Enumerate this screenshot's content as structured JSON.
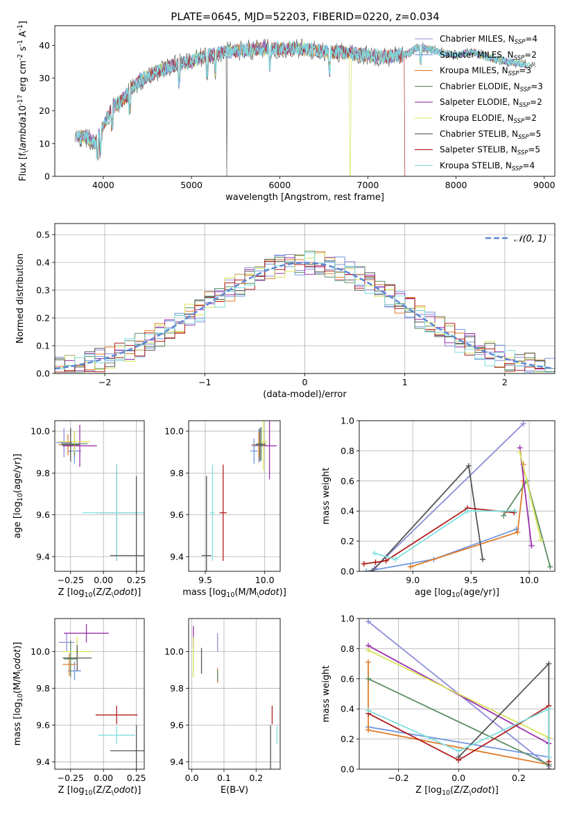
{
  "title": "PLATE=0645, MJD=52203, FIBERID=0220, z=0.034",
  "models": [
    {
      "name": "Chabrier MILES, N$_{SSP}$=4",
      "label_main": "Chabrier MILES, N",
      "label_sub": "SSP",
      "label_tail": "=4",
      "color": "#8c8cd8"
    },
    {
      "name": "Salpeter MILES, N$_{SSP}$=2",
      "label_main": "Salpeter MILES, N",
      "label_sub": "SSP",
      "label_tail": "=2",
      "color": "#6f97df"
    },
    {
      "name": "Kroupa MILES, N$_{SSP}$=3",
      "label_main": "Kroupa MILES, N",
      "label_sub": "SSP",
      "label_tail": "=3",
      "color": "#e07b28"
    },
    {
      "name": "Chabrier ELODIE, N$_{SSP}$=3",
      "label_main": "Chabrier ELODIE, N",
      "label_sub": "SSP",
      "label_tail": "=3",
      "color": "#5c8d62"
    },
    {
      "name": "Salpeter ELODIE, N$_{SSP}$=2",
      "label_main": "Salpeter ELODIE, N",
      "label_sub": "SSP",
      "label_tail": "=2",
      "color": "#9b2fae"
    },
    {
      "name": "Kroupa ELODIE, N$_{SSP}$=2",
      "label_main": "Kroupa ELODIE, N",
      "label_sub": "SSP",
      "label_tail": "=2",
      "color": "#d9e35a"
    },
    {
      "name": "Chabrier STELIB, N$_{SSP}$=5",
      "label_main": "Chabrier STELIB, N",
      "label_sub": "SSP",
      "label_tail": "=5",
      "color": "#555555"
    },
    {
      "name": "Salpeter STELIB, N$_{SSP}$=5",
      "label_main": "Salpeter STELIB, N",
      "label_sub": "SSP",
      "label_tail": "=5",
      "color": "#b01c1c"
    },
    {
      "name": "Kroupa STELIB, N$_{SSP}$=4",
      "label_main": "Kroupa STELIB, N",
      "label_sub": "SSP",
      "label_tail": "=4",
      "color": "#7fdede"
    }
  ],
  "chart_data": [
    {
      "id": "spectrum",
      "type": "line",
      "xlabel": "wavelength [Angstrom, rest frame]",
      "ylabel": "Flux [f$_\\lambda$10$^{-17}$ erg cm$^{-2}$ s$^{-1}$ A$^{-1}$]",
      "xlim": [
        3450,
        9120
      ],
      "ylim": [
        0,
        46
      ],
      "xticks": [
        4000,
        5000,
        6000,
        7000,
        8000,
        9000
      ],
      "yticks": [
        0,
        10,
        20,
        30,
        40
      ],
      "grid": false,
      "legend": "right",
      "continuum": {
        "x": [
          3700,
          3800,
          3900,
          4000,
          4100,
          4200,
          4300,
          4400,
          4600,
          4800,
          5000,
          5200,
          5400,
          5600,
          5800,
          6000,
          6200,
          6400,
          6600,
          6800,
          7000,
          7200,
          7400,
          7600,
          7800,
          8000,
          8200,
          8400,
          8600,
          8800
        ],
        "y": [
          12,
          12,
          10,
          15,
          21,
          23,
          26,
          29,
          32,
          34,
          35,
          37,
          38,
          38.5,
          39,
          39,
          39,
          38.5,
          38,
          37.5,
          37,
          36.5,
          37,
          39.5,
          38,
          37,
          38,
          36,
          35,
          34
        ]
      }
    },
    {
      "id": "residuals",
      "type": "step",
      "xlabel": "(data-model)/error",
      "ylabel": "Normed distribution",
      "xlim": [
        -2.5,
        2.5
      ],
      "ylim": [
        0,
        0.54
      ],
      "xticks": [
        -2,
        -1,
        0,
        1,
        2
      ],
      "xtick_labels": [
        "−2",
        "−1",
        "0",
        "1",
        "2"
      ],
      "yticks": [
        0,
        0.1,
        0.2,
        0.3,
        0.4,
        0.5
      ],
      "ytick_labels": [
        "0.0",
        "0.1",
        "0.2",
        "0.3",
        "0.4",
        "0.5"
      ],
      "grid": true,
      "legend": "top-right",
      "reference_label": "𝒩(0, 1)",
      "bin_width": 0.1
    },
    {
      "id": "age-Z",
      "type": "errorbar",
      "xlabel": "Z [log$_{10}$(Z/Z$_\\odot$)]",
      "ylabel": "age [log$_{10}$(age/yr)]",
      "xlim": [
        -0.37,
        0.31
      ],
      "ylim": [
        9.33,
        10.05
      ],
      "xticks": [
        -0.25,
        0,
        0.25
      ],
      "xtick_labels": [
        "−0.25",
        "0.00",
        "0.25"
      ],
      "yticks": [
        9.4,
        9.6,
        9.8,
        10.0
      ],
      "ytick_labels": [
        "9.4",
        "9.6",
        "9.8",
        "10.0"
      ],
      "points": [
        {
          "x": -0.3,
          "y": 9.945,
          "xerr": 0.06,
          "yerr": 0.07,
          "c": 0
        },
        {
          "x": -0.22,
          "y": 9.905,
          "xerr": 0.05,
          "yerr": 0.06,
          "c": 1
        },
        {
          "x": -0.27,
          "y": 9.935,
          "xerr": 0.07,
          "yerr": 0.05,
          "c": 2
        },
        {
          "x": -0.22,
          "y": 9.94,
          "xerr": 0.1,
          "yerr": 0.06,
          "c": 3
        },
        {
          "x": -0.18,
          "y": 9.93,
          "xerr": 0.13,
          "yerr": 0.1,
          "c": 4
        },
        {
          "x": -0.22,
          "y": 9.95,
          "xerr": 0.12,
          "yerr": 0.05,
          "c": 5
        },
        {
          "x": -0.25,
          "y": 9.935,
          "xerr": 0.07,
          "yerr": 0.08,
          "c": 6
        },
        {
          "x": 0.1,
          "y": 9.61,
          "xerr": 0.16,
          "yerr": 0.23,
          "c": 7
        },
        {
          "x": 0.1,
          "y": 9.61,
          "xerr": 0.26,
          "yerr": 0.23,
          "c": 8
        },
        {
          "x": 0.25,
          "y": 9.405,
          "xerr": 0.2,
          "yerr": 0.38,
          "c": 6
        }
      ]
    },
    {
      "id": "age-mass",
      "type": "errorbar",
      "xlabel": "mass [log$_{10}$(M/M$_\\odot$)]",
      "ylabel": "",
      "xlim": [
        9.36,
        10.13
      ],
      "ylim": [
        9.33,
        10.05
      ],
      "xticks": [
        9.5,
        10.0
      ],
      "xtick_labels": [
        "9.5",
        "10.0"
      ],
      "yticks": [
        9.4,
        9.6,
        9.8,
        10.0
      ],
      "ytick_labels": [
        "9.4",
        "9.6",
        "9.8",
        "10.0"
      ],
      "points": [
        {
          "x": 9.95,
          "y": 9.93,
          "xerr": 0.06,
          "yerr": 0.08,
          "c": 0
        },
        {
          "x": 9.91,
          "y": 9.905,
          "xerr": 0.03,
          "yerr": 0.06,
          "c": 1
        },
        {
          "x": 9.95,
          "y": 9.935,
          "xerr": 0.06,
          "yerr": 0.06,
          "c": 2
        },
        {
          "x": 9.97,
          "y": 9.94,
          "xerr": 0.04,
          "yerr": 0.08,
          "c": 3
        },
        {
          "x": 10.04,
          "y": 9.93,
          "xerr": 0.06,
          "yerr": 0.16,
          "c": 4
        },
        {
          "x": 9.99,
          "y": 9.95,
          "xerr": 0.03,
          "yerr": 0.14,
          "c": 5
        },
        {
          "x": 9.96,
          "y": 9.935,
          "xerr": 0.04,
          "yerr": 0.08,
          "c": 6
        },
        {
          "x": 9.65,
          "y": 9.61,
          "xerr": 0.03,
          "yerr": 0.23,
          "c": 7
        },
        {
          "x": 9.56,
          "y": 9.61,
          "xerr": 0.02,
          "yerr": 0.23,
          "c": 8
        },
        {
          "x": 9.51,
          "y": 9.405,
          "xerr": 0.04,
          "yerr": 0.38,
          "c": 6
        }
      ]
    },
    {
      "id": "weight-age",
      "type": "line",
      "xlabel": "age [log$_{10}$(age/yr)]",
      "ylabel": "mass weight",
      "xlim": [
        8.54,
        10.22
      ],
      "ylim": [
        0,
        1.0
      ],
      "xticks": [
        9.0,
        9.5,
        10.0
      ],
      "xtick_labels": [
        "9.0",
        "9.5",
        "10.0"
      ],
      "yticks": [
        0,
        0.2,
        0.4,
        0.6,
        0.8,
        1.0
      ],
      "ytick_labels": [
        "0.0",
        "0.2",
        "0.4",
        "0.6",
        "0.8",
        "1.0"
      ],
      "grid": true,
      "series": [
        {
          "c": 0,
          "x": [
            9.95,
            8.67
          ],
          "y": [
            0.98,
            0.02
          ]
        },
        {
          "c": 1,
          "x": [
            8.6,
            9.18,
            9.89
          ],
          "y": [
            0.0,
            0.08,
            0.28
          ]
        },
        {
          "c": 2,
          "x": [
            8.98,
            9.9,
            9.95,
            9.95
          ],
          "y": [
            0.03,
            0.26,
            0.6,
            0.71
          ]
        },
        {
          "c": 3,
          "x": [
            9.78,
            9.98,
            10.18
          ],
          "y": [
            0.37,
            0.6,
            0.03
          ]
        },
        {
          "c": 4,
          "x": [
            9.92,
            10.02
          ],
          "y": [
            0.82,
            0.17
          ]
        },
        {
          "c": 5,
          "x": [
            9.92,
            10.1
          ],
          "y": [
            0.79,
            0.21
          ]
        },
        {
          "c": 6,
          "x": [
            8.65,
            9.48,
            9.6
          ],
          "y": [
            0.0,
            0.7,
            0.08
          ]
        },
        {
          "c": 7,
          "x": [
            8.58,
            8.68,
            8.77,
            9.47,
            9.87
          ],
          "y": [
            0.05,
            0.06,
            0.07,
            0.42,
            0.39
          ]
        },
        {
          "c": 8,
          "x": [
            8.67,
            8.85,
            9.47,
            9.88
          ],
          "y": [
            0.12,
            0.08,
            0.4,
            0.4
          ]
        }
      ]
    },
    {
      "id": "mass-Z",
      "type": "errorbar",
      "xlabel": "Z [log$_{10}$(Z/Z$_\\odot$)]",
      "ylabel": "mass [log$_{10}$(M/M$_\\odot$)]",
      "xlim": [
        -0.37,
        0.31
      ],
      "ylim": [
        9.36,
        10.18
      ],
      "xticks": [
        -0.25,
        0,
        0.25
      ],
      "xtick_labels": [
        "−0.25",
        "0.00",
        "0.25"
      ],
      "yticks": [
        9.4,
        9.6,
        9.8,
        10.0
      ],
      "ytick_labels": [
        "9.4",
        "9.6",
        "9.8",
        "10.0"
      ],
      "points": [
        {
          "x": -0.28,
          "y": 10.05,
          "xerr": 0.06,
          "yerr": 0.05,
          "c": 0
        },
        {
          "x": -0.22,
          "y": 9.895,
          "xerr": 0.05,
          "yerr": 0.05,
          "c": 1
        },
        {
          "x": -0.26,
          "y": 9.93,
          "xerr": 0.05,
          "yerr": 0.06,
          "c": 2
        },
        {
          "x": -0.25,
          "y": 9.96,
          "xerr": 0.05,
          "yerr": 0.1,
          "c": 3
        },
        {
          "x": -0.13,
          "y": 10.1,
          "xerr": 0.17,
          "yerr": 0.05,
          "c": 4
        },
        {
          "x": -0.2,
          "y": 10.0,
          "xerr": 0.12,
          "yerr": 0.08,
          "c": 5
        },
        {
          "x": -0.2,
          "y": 9.965,
          "xerr": 0.11,
          "yerr": 0.07,
          "c": 6
        },
        {
          "x": 0.1,
          "y": 9.655,
          "xerr": 0.16,
          "yerr": 0.05,
          "c": 7
        },
        {
          "x": 0.1,
          "y": 9.545,
          "xerr": 0.14,
          "yerr": 0.05,
          "c": 8
        },
        {
          "x": 0.25,
          "y": 9.46,
          "xerr": 0.2,
          "yerr": 0.14,
          "c": 6
        }
      ]
    },
    {
      "id": "mass-EBV",
      "type": "errorbar",
      "xlabel": "E(B-V)",
      "ylabel": "",
      "xlim": [
        -0.01,
        0.275
      ],
      "ylim": [
        9.36,
        10.18
      ],
      "xticks": [
        0.0,
        0.1,
        0.2
      ],
      "xtick_labels": [
        "0.0",
        "0.1",
        "0.2"
      ],
      "yticks": [
        9.4,
        9.6,
        9.8,
        10.0
      ],
      "ytick_labels": [
        "9.4",
        "9.6",
        "9.8",
        "10.0"
      ],
      "points": [
        {
          "x": 0.08,
          "y": 10.05,
          "xerr": 0,
          "yerr": 0.05,
          "c": 0
        },
        {
          "x": 0.005,
          "y": 10.08,
          "xerr": 0,
          "yerr": 0.06,
          "c": 4
        },
        {
          "x": 0.005,
          "y": 9.97,
          "xerr": 0,
          "yerr": 0.11,
          "c": 5
        },
        {
          "x": 0.03,
          "y": 9.95,
          "xerr": 0,
          "yerr": 0.07,
          "c": 6
        },
        {
          "x": 0.08,
          "y": 9.87,
          "xerr": 0,
          "yerr": 0.04,
          "c": 2
        },
        {
          "x": 0.08,
          "y": 9.87,
          "xerr": 0,
          "yerr": 0.03,
          "c": 3
        },
        {
          "x": 0.25,
          "y": 9.655,
          "xerr": 0,
          "yerr": 0.05,
          "c": 7
        },
        {
          "x": 0.265,
          "y": 9.545,
          "xerr": 0,
          "yerr": 0.05,
          "c": 8
        },
        {
          "x": 0.245,
          "y": 9.46,
          "xerr": 0,
          "yerr": 0.14,
          "c": 6
        }
      ]
    },
    {
      "id": "weight-Z",
      "type": "line",
      "xlabel": "Z [log$_{10}$(Z/Z$_\\odot$)]",
      "ylabel": "mass weight",
      "xlim": [
        -0.33,
        0.32
      ],
      "ylim": [
        0,
        1.0
      ],
      "xticks": [
        -0.2,
        0.0,
        0.2
      ],
      "xtick_labels": [
        "−0.2",
        "0.0",
        "0.2"
      ],
      "yticks": [
        0,
        0.2,
        0.4,
        0.6,
        0.8,
        1.0
      ],
      "ytick_labels": [
        "0.0",
        "0.2",
        "0.4",
        "0.6",
        "0.8",
        "1.0"
      ],
      "grid": true,
      "series": [
        {
          "c": 0,
          "x": [
            -0.3,
            0.3
          ],
          "y": [
            0.98,
            0.02
          ]
        },
        {
          "c": 1,
          "x": [
            -0.3,
            0.3
          ],
          "y": [
            0.28,
            0.08
          ]
        },
        {
          "c": 2,
          "x": [
            -0.3,
            -0.3,
            -0.3,
            0.3
          ],
          "y": [
            0.71,
            0.6,
            0.26,
            0.03
          ]
        },
        {
          "c": 3,
          "x": [
            -0.3,
            0.3
          ],
          "y": [
            0.6,
            0.03
          ]
        },
        {
          "c": 4,
          "x": [
            -0.3,
            0.3
          ],
          "y": [
            0.82,
            0.17
          ]
        },
        {
          "c": 5,
          "x": [
            -0.3,
            0.3
          ],
          "y": [
            0.79,
            0.21
          ]
        },
        {
          "c": 6,
          "x": [
            0.0,
            0.3,
            0.3
          ],
          "y": [
            0.08,
            0.7,
            0.0
          ]
        },
        {
          "c": 7,
          "x": [
            -0.3,
            0.0,
            0.3,
            0.3
          ],
          "y": [
            0.37,
            0.06,
            0.42,
            0.05
          ]
        },
        {
          "c": 8,
          "x": [
            -0.3,
            0.0,
            0.3,
            0.3
          ],
          "y": [
            0.39,
            0.12,
            0.4,
            0.08
          ]
        }
      ]
    }
  ]
}
